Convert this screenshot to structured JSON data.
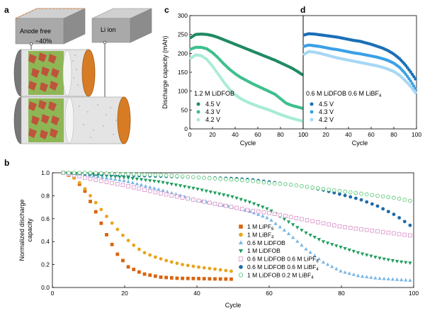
{
  "panel_labels": {
    "a": "a",
    "b": "b",
    "c": "c",
    "d": "d"
  },
  "schematic": {
    "anode_free_label": "Anode free",
    "reduction_label": "~40%",
    "li_ion_label": "Li ion"
  },
  "colors": {
    "c_45": "#1f8a62",
    "c_43": "#3dbf8d",
    "c_42": "#a8ebd6",
    "d_45": "#1a6fb5",
    "d_43": "#3aa0e6",
    "d_42": "#a7d7f5",
    "LiPF6": "#d9640f",
    "LiBF4": "#e8a51a",
    "LiDFOB06": "#7ab7e6",
    "LiDFOB1": "#1f9e5e",
    "mix_PF6": "#d98fc6",
    "mix_BF4": "#1e6aa8",
    "mix_02": "#4cc46c"
  },
  "chart_data": [
    {
      "id": "c",
      "type": "scatter",
      "xlabel": "Cycle",
      "ylabel": "Discharge capacity (mAh)",
      "xlim": [
        0,
        100
      ],
      "ylim": [
        0,
        300
      ],
      "xticks": [
        "0",
        "20",
        "40",
        "60",
        "80",
        "100"
      ],
      "yticks": [
        "0",
        "50",
        "100",
        "150",
        "200",
        "250",
        "300"
      ],
      "legend_title": "1.2 M LiDFOB",
      "series": [
        {
          "name": "4.5 V",
          "color_key": "c_45",
          "x": [
            0,
            5,
            10,
            15,
            20,
            25,
            30,
            35,
            40,
            45,
            50,
            55,
            60,
            65,
            70,
            75,
            80,
            85,
            90,
            95,
            100
          ],
          "y": [
            240,
            250,
            251,
            250,
            247,
            242,
            236,
            230,
            224,
            218,
            212,
            206,
            200,
            194,
            188,
            182,
            175,
            168,
            161,
            152,
            142
          ]
        },
        {
          "name": "4.3 V",
          "color_key": "c_43",
          "x": [
            0,
            5,
            10,
            15,
            20,
            25,
            30,
            35,
            40,
            45,
            50,
            55,
            60,
            65,
            70,
            75,
            80,
            85,
            90,
            95,
            100
          ],
          "y": [
            210,
            216,
            216,
            212,
            202,
            188,
            172,
            158,
            146,
            136,
            128,
            120,
            113,
            106,
            99,
            92,
            80,
            68,
            62,
            58,
            54
          ]
        },
        {
          "name": "4.2 V",
          "color_key": "c_42",
          "x": [
            0,
            5,
            10,
            15,
            20,
            25,
            30,
            35,
            40,
            45,
            50,
            55,
            60,
            65,
            70,
            75,
            80,
            85,
            90,
            95,
            100
          ],
          "y": [
            185,
            196,
            194,
            184,
            166,
            145,
            124,
            105,
            90,
            80,
            72,
            66,
            60,
            55,
            50,
            44,
            38,
            33,
            28,
            24,
            20
          ]
        }
      ]
    },
    {
      "id": "d",
      "type": "scatter",
      "xlabel": "Cycle",
      "xlim": [
        0,
        100
      ],
      "ylim": [
        0,
        300
      ],
      "xticks": [
        "0",
        "20",
        "40",
        "60",
        "80",
        "100"
      ],
      "legend_title_main": "0.6 M LiDFOB 0.6 M LiBF",
      "legend_title_sub": "4",
      "series": [
        {
          "name": "4.5 V",
          "color_key": "d_45",
          "x": [
            0,
            5,
            10,
            15,
            20,
            25,
            30,
            35,
            40,
            45,
            50,
            55,
            60,
            65,
            70,
            75,
            80,
            85,
            90,
            95,
            100
          ],
          "y": [
            248,
            252,
            251,
            249,
            247,
            245,
            243,
            240,
            237,
            234,
            232,
            228,
            224,
            219,
            214,
            207,
            198,
            186,
            170,
            150,
            128
          ]
        },
        {
          "name": "4.3 V",
          "color_key": "d_43",
          "x": [
            0,
            5,
            10,
            15,
            20,
            25,
            30,
            35,
            40,
            45,
            50,
            55,
            60,
            65,
            70,
            75,
            80,
            85,
            90,
            95,
            100
          ],
          "y": [
            218,
            222,
            220,
            218,
            215,
            212,
            210,
            207,
            204,
            201,
            199,
            196,
            193,
            190,
            186,
            181,
            174,
            163,
            147,
            126,
            102
          ]
        },
        {
          "name": "4.2 V",
          "color_key": "d_42",
          "x": [
            0,
            5,
            10,
            15,
            20,
            25,
            30,
            35,
            40,
            45,
            50,
            55,
            60,
            65,
            70,
            75,
            80,
            85,
            90,
            95,
            100
          ],
          "y": [
            196,
            205,
            203,
            200,
            196,
            192,
            188,
            185,
            182,
            179,
            176,
            173,
            170,
            167,
            163,
            158,
            152,
            142,
            128,
            112,
            92
          ]
        }
      ]
    },
    {
      "id": "b",
      "type": "scatter",
      "xlabel": "Cycle",
      "ylabel": "Normalized discharge capacity",
      "ylabel_lines": [
        "Normalized discharge",
        "capacity"
      ],
      "xlim": [
        0,
        100
      ],
      "ylim": [
        0,
        1.0
      ],
      "xticks": [
        "0",
        "20",
        "40",
        "60",
        "80",
        "100"
      ],
      "yticks": [
        "0.0",
        "0.2",
        "0.4",
        "0.6",
        "0.8",
        "1.0"
      ],
      "series": [
        {
          "name": "1 M LiPF",
          "sub": "6",
          "marker": "square",
          "color_key": "LiPF6",
          "x": [
            3,
            6,
            9,
            12,
            15,
            18,
            21,
            25,
            30,
            35,
            40,
            45,
            50
          ],
          "y": [
            1.0,
            0.96,
            0.84,
            0.66,
            0.46,
            0.29,
            0.18,
            0.12,
            0.09,
            0.08,
            0.078,
            0.075,
            0.073
          ]
        },
        {
          "name": "1 M LiBF",
          "sub": "4",
          "marker": "circle",
          "color_key": "LiBF4",
          "x": [
            3,
            5,
            8,
            10,
            13,
            16,
            19,
            22,
            25,
            28,
            32,
            36,
            40,
            45,
            50
          ],
          "y": [
            1.0,
            0.98,
            0.9,
            0.82,
            0.7,
            0.58,
            0.47,
            0.38,
            0.31,
            0.27,
            0.23,
            0.2,
            0.18,
            0.16,
            0.14
          ]
        },
        {
          "name": "0.6 M LiDFOB",
          "sub": "",
          "marker": "triangle-up",
          "color_key": "LiDFOB06",
          "x": [
            3,
            10,
            20,
            30,
            40,
            50,
            55,
            60,
            65,
            70,
            75,
            80,
            85,
            90,
            95,
            100
          ],
          "y": [
            1.0,
            0.98,
            0.93,
            0.85,
            0.76,
            0.7,
            0.66,
            0.6,
            0.48,
            0.34,
            0.22,
            0.14,
            0.1,
            0.08,
            0.07,
            0.06
          ]
        },
        {
          "name": "1 M LiDFOB",
          "sub": "",
          "marker": "triangle-down",
          "color_key": "LiDFOB1",
          "x": [
            3,
            10,
            20,
            30,
            40,
            50,
            55,
            60,
            65,
            70,
            75,
            80,
            85,
            90,
            95,
            100
          ],
          "y": [
            1.0,
            0.99,
            0.96,
            0.92,
            0.86,
            0.79,
            0.74,
            0.68,
            0.58,
            0.48,
            0.4,
            0.35,
            0.3,
            0.26,
            0.23,
            0.21
          ]
        },
        {
          "name": "0.6 M LiDFOB 0.6 M LiPF",
          "sub": "6",
          "marker": "open-square",
          "color_key": "mix_PF6",
          "x": [
            3,
            10,
            20,
            30,
            40,
            50,
            55,
            60,
            65,
            70,
            75,
            80,
            85,
            90,
            95,
            100
          ],
          "y": [
            1.0,
            0.95,
            0.89,
            0.82,
            0.76,
            0.7,
            0.67,
            0.65,
            0.62,
            0.59,
            0.56,
            0.53,
            0.51,
            0.49,
            0.47,
            0.45
          ]
        },
        {
          "name": "0.6 M LiDFOB 0.6 M LiBF",
          "sub": "4",
          "marker": "circle",
          "color_key": "mix_BF4",
          "x": [
            3,
            10,
            20,
            30,
            40,
            50,
            55,
            60,
            65,
            70,
            75,
            80,
            85,
            90,
            95,
            100
          ],
          "y": [
            1.0,
            0.99,
            0.98,
            0.97,
            0.96,
            0.95,
            0.94,
            0.92,
            0.9,
            0.88,
            0.85,
            0.81,
            0.77,
            0.71,
            0.63,
            0.52
          ]
        },
        {
          "name": "1 M LiDFOB 0.2 M LiBF",
          "sub": "4",
          "marker": "open-circle",
          "color_key": "mix_02",
          "x": [
            3,
            10,
            20,
            30,
            40,
            50,
            55,
            60,
            65,
            70,
            75,
            80,
            85,
            90,
            95,
            100
          ],
          "y": [
            1.0,
            1.0,
            0.99,
            0.98,
            0.96,
            0.94,
            0.93,
            0.91,
            0.9,
            0.88,
            0.86,
            0.84,
            0.82,
            0.8,
            0.78,
            0.75
          ]
        }
      ]
    }
  ]
}
